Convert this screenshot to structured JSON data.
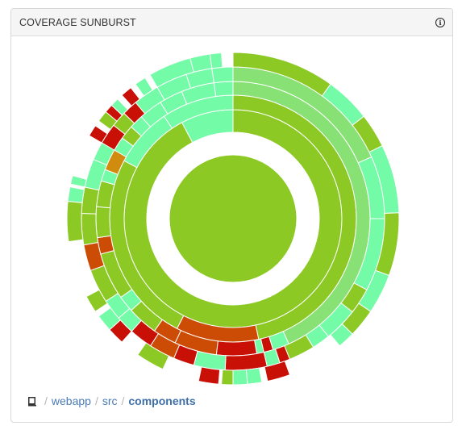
{
  "panel": {
    "title": "COVERAGE SUNBURST",
    "info_icon": "info-circle-icon"
  },
  "breadcrumb": {
    "root_icon": "repository-book-icon",
    "separator": "/",
    "items": [
      {
        "label": "webapp",
        "current": false
      },
      {
        "label": "src",
        "current": false
      },
      {
        "label": "components",
        "current": true
      }
    ]
  },
  "colors": {
    "covered": "#8cc924",
    "covered_light": "#87e174",
    "mint": "#74fba8",
    "orange": "#d18b0e",
    "dark_orange": "#cc4b05",
    "red": "#c81006"
  }
}
